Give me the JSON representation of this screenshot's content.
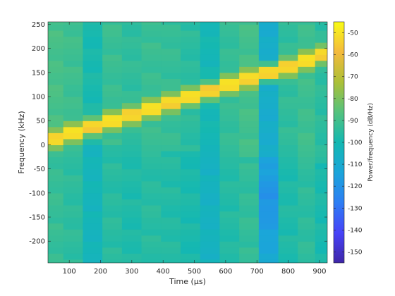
{
  "chart_data": {
    "type": "heatmap",
    "title": "",
    "xlabel": "Time (µs)",
    "ylabel": "Frequency (kHz)",
    "colorbar_label": "Power/frequency (dB/Hz)",
    "colormap": "parula",
    "clim": [
      -155,
      -45
    ],
    "x_ticks": [
      100,
      200,
      300,
      400,
      500,
      600,
      700,
      800,
      900
    ],
    "y_ticks": [
      250,
      200,
      150,
      100,
      50,
      0,
      -50,
      -100,
      -150,
      -200
    ],
    "colorbar_ticks": [
      -50,
      -60,
      -70,
      -80,
      -90,
      -100,
      -110,
      -120,
      -130,
      -140,
      -150
    ],
    "xlim": [
      32,
      925
    ],
    "ylim": [
      -245,
      255
    ],
    "time_bin_centers_us": [
      50,
      112,
      175,
      237,
      300,
      362,
      425,
      487,
      550,
      612,
      675,
      737,
      800,
      862,
      910
    ],
    "frequency_bin_height_khz": 12.5,
    "chirp_peak_frequency_khz": [
      12,
      25,
      38,
      50,
      62,
      75,
      88,
      100,
      112,
      125,
      138,
      150,
      162,
      175,
      188
    ],
    "chirp_peak_level_db": -45,
    "column_background_level_db": [
      -89,
      -91,
      -99,
      -92,
      -94,
      -92,
      -93,
      -95,
      -101,
      -93,
      -90,
      -108,
      -94,
      -91,
      -95
    ]
  }
}
